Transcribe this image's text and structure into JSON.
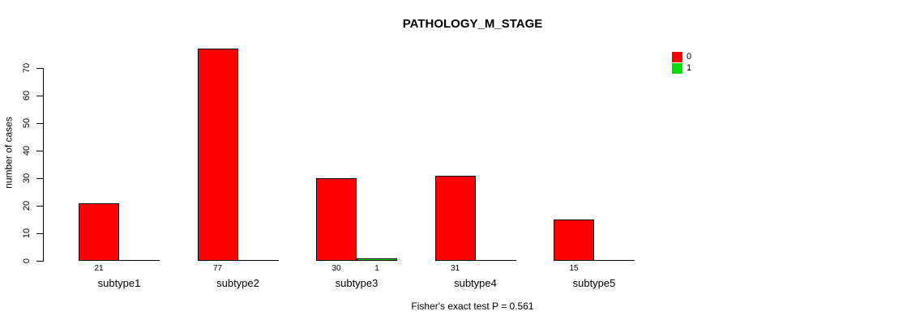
{
  "chart_data": {
    "type": "bar",
    "title": "PATHOLOGY_M_STAGE",
    "ylabel": "number of cases",
    "xlabel": "",
    "caption": "Fisher's exact test P = 0.561",
    "categories": [
      "subtype1",
      "subtype2",
      "subtype3",
      "subtype4",
      "subtype5"
    ],
    "series": [
      {
        "name": "0",
        "color": "#ff0000",
        "values": [
          21,
          77,
          30,
          31,
          15
        ]
      },
      {
        "name": "1",
        "color": "#00e000",
        "values": [
          0,
          0,
          1,
          0,
          0
        ]
      }
    ],
    "bar_value_labels": {
      "show_only_nonzero": true,
      "shown": [
        "21",
        "77",
        "30",
        "1",
        "31",
        "15"
      ]
    },
    "yticks": [
      0,
      10,
      20,
      30,
      40,
      50,
      60,
      70
    ],
    "ylim": [
      0,
      70
    ],
    "grid": false,
    "legend_position": "right",
    "legend_entries": [
      {
        "label": "0",
        "color": "#ff0000"
      },
      {
        "label": "1",
        "color": "#00e000"
      }
    ]
  }
}
